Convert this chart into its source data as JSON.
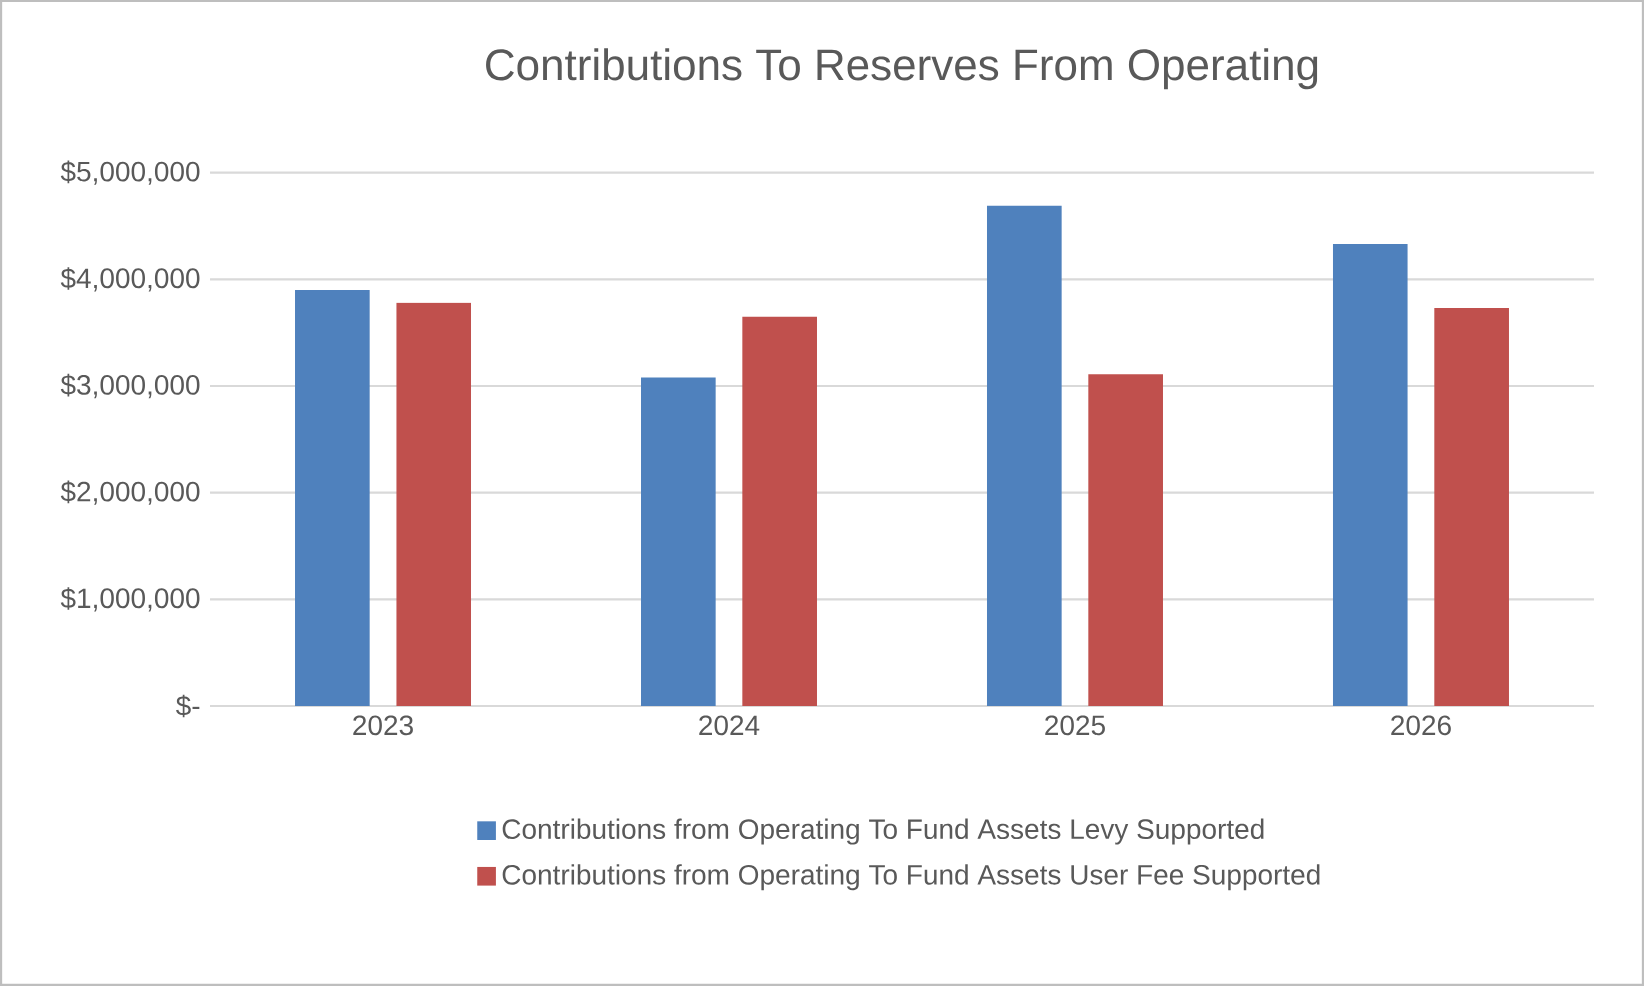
{
  "chart_data": {
    "type": "bar",
    "title": "Contributions To Reserves From Operating",
    "categories": [
      "2023",
      "2024",
      "2025",
      "2026"
    ],
    "series": [
      {
        "name": "Contributions from Operating  To Fund Assets Levy Supported",
        "color": "#4f81bd",
        "values": [
          3900000,
          3080000,
          4690000,
          4330000
        ]
      },
      {
        "name": "Contributions from Operating  To Fund Assets User Fee Supported",
        "color": "#c0504d",
        "values": [
          3780000,
          3650000,
          3110000,
          3730000
        ]
      }
    ],
    "ylim": [
      0,
      5000000
    ],
    "yticks": [
      {
        "value": 0,
        "label": "$-"
      },
      {
        "value": 1000000,
        "label": "$1,000,000"
      },
      {
        "value": 2000000,
        "label": "$2,000,000"
      },
      {
        "value": 3000000,
        "label": "$3,000,000"
      },
      {
        "value": 4000000,
        "label": "$4,000,000"
      },
      {
        "value": 5000000,
        "label": "$5,000,000"
      }
    ],
    "grid": "y",
    "legend": "bottom"
  }
}
